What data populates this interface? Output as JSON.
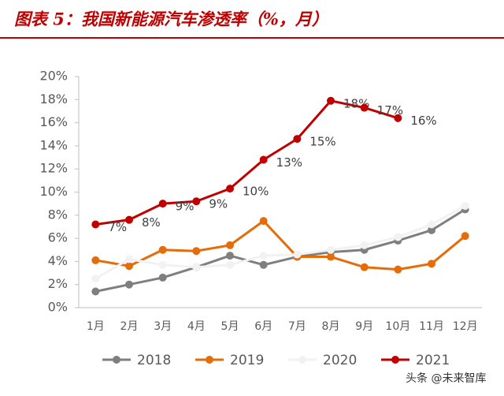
{
  "chart_data": {
    "type": "line",
    "title": "图表 5：我国新能源汽车渗透率（%，月）",
    "categories": [
      "1月",
      "2月",
      "3月",
      "4月",
      "5月",
      "6月",
      "7月",
      "8月",
      "9月",
      "10月",
      "11月",
      "12月"
    ],
    "series": [
      {
        "name": "2018",
        "color": "#7f7f7f",
        "values": [
          1.4,
          2.0,
          2.6,
          3.5,
          4.5,
          3.7,
          4.4,
          4.8,
          5.0,
          5.8,
          6.7,
          8.5
        ]
      },
      {
        "name": "2019",
        "color": "#e46c0a",
        "values": [
          4.1,
          3.6,
          5.0,
          4.9,
          5.4,
          7.5,
          4.4,
          4.4,
          3.5,
          3.3,
          3.8,
          6.2
        ]
      },
      {
        "name": "2020",
        "color": "#f2f2f2",
        "values": [
          2.5,
          4.2,
          3.7,
          3.5,
          3.7,
          4.5,
          4.6,
          5.0,
          5.4,
          6.1,
          7.2,
          8.8
        ]
      },
      {
        "name": "2021",
        "color": "#c00000",
        "values": [
          7.2,
          7.6,
          9.0,
          9.2,
          10.3,
          12.8,
          14.6,
          17.9,
          17.3,
          16.4,
          null,
          null
        ],
        "value_labels": [
          "7%",
          "8%",
          "9%",
          "9%",
          "10%",
          "13%",
          "15%",
          "18%",
          "17%",
          "16%",
          null,
          null
        ]
      }
    ],
    "ylim": [
      0,
      20
    ],
    "yticks": [
      {
        "value": 0,
        "label": "0%"
      },
      {
        "value": 2,
        "label": "2%"
      },
      {
        "value": 4,
        "label": "4%"
      },
      {
        "value": 6,
        "label": "6%"
      },
      {
        "value": 8,
        "label": "8%"
      },
      {
        "value": 10,
        "label": "10%"
      },
      {
        "value": 12,
        "label": "12%"
      },
      {
        "value": 14,
        "label": "14%"
      },
      {
        "value": 16,
        "label": "16%"
      },
      {
        "value": 18,
        "label": "18%"
      },
      {
        "value": 20,
        "label": "20%"
      }
    ],
    "legend": "bottom",
    "watermark": "头条 @未来智库"
  }
}
